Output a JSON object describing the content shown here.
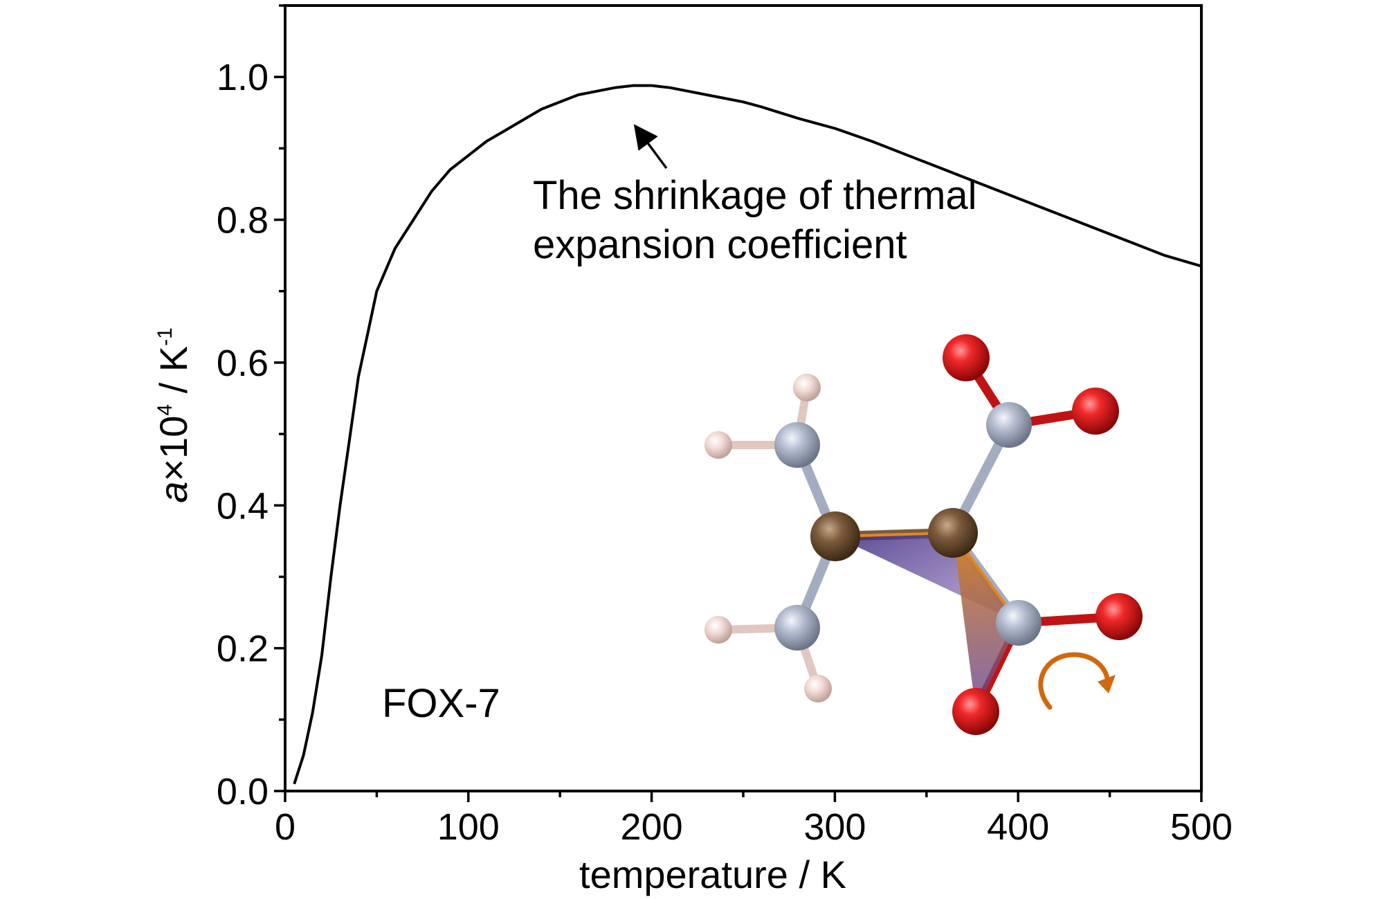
{
  "chart_data": {
    "type": "line",
    "title": "",
    "xlabel": "temperature / K",
    "ylabel": {
      "symbol": "a",
      "times": "×10",
      "exponent": "4",
      "unit": " / K",
      "unit_exponent": "-1"
    },
    "xlim": [
      0,
      500
    ],
    "ylim": [
      0,
      1.1
    ],
    "x_ticks": [
      "0",
      "100",
      "200",
      "300",
      "400",
      "500"
    ],
    "y_ticks": [
      "0.0",
      "0.2",
      "0.4",
      "0.6",
      "0.8",
      "1.0"
    ],
    "grid": false,
    "legend": "none",
    "series": [
      {
        "x": [
          5,
          10,
          15,
          20,
          25,
          30,
          35,
          40,
          45,
          50,
          55,
          60,
          70,
          80,
          90,
          100,
          110,
          120,
          130,
          140,
          150,
          160,
          170,
          180,
          190,
          200,
          210,
          220,
          230,
          240,
          250,
          260,
          270,
          280,
          290,
          300,
          320,
          340,
          360,
          380,
          400,
          420,
          440,
          460,
          480,
          500
        ],
        "y": [
          0.01,
          0.05,
          0.11,
          0.19,
          0.3,
          0.4,
          0.49,
          0.58,
          0.64,
          0.7,
          0.73,
          0.76,
          0.8,
          0.84,
          0.87,
          0.89,
          0.91,
          0.925,
          0.94,
          0.955,
          0.965,
          0.975,
          0.98,
          0.985,
          0.988,
          0.988,
          0.985,
          0.98,
          0.975,
          0.97,
          0.965,
          0.958,
          0.95,
          0.942,
          0.935,
          0.928,
          0.91,
          0.89,
          0.87,
          0.85,
          0.83,
          0.81,
          0.79,
          0.77,
          0.75,
          0.735
        ],
        "color": "#000000"
      }
    ],
    "annotations": [
      {
        "id": "shrinkage",
        "lines": [
          "The shrinkage of thermal",
          "expansion coefficient"
        ],
        "arrow_to_x": 188,
        "arrow_to_y": 0.93
      },
      {
        "id": "compound",
        "text": "FOX-7"
      }
    ]
  },
  "colors": {
    "carbon": "#7b5a3c",
    "nitrogen": "#aab2c8",
    "oxygen": "#e01818",
    "hydrogen": "#f2d8d4",
    "rotation_arrow": "#d06810",
    "plane_purple": "#4a3a8c",
    "plane_orange": "#e08820"
  }
}
